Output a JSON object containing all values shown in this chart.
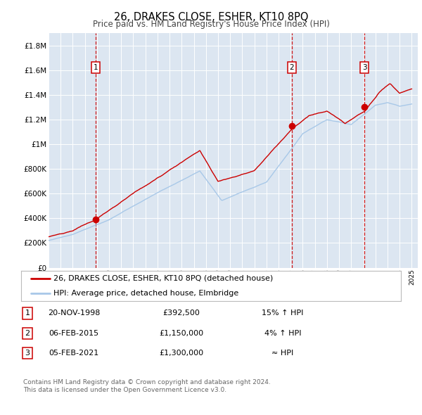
{
  "title": "26, DRAKES CLOSE, ESHER, KT10 8PQ",
  "subtitle": "Price paid vs. HM Land Registry's House Price Index (HPI)",
  "background_color": "#ffffff",
  "plot_bg_color": "#dce6f1",
  "hpi_line_color": "#a8c8e8",
  "price_line_color": "#cc0000",
  "sale_marker_color": "#cc0000",
  "vline_color": "#cc0000",
  "ylim": [
    0,
    1900000
  ],
  "yticks": [
    0,
    200000,
    400000,
    600000,
    800000,
    1000000,
    1200000,
    1400000,
    1600000,
    1800000
  ],
  "ytick_labels": [
    "£0",
    "£200K",
    "£400K",
    "£600K",
    "£800K",
    "£1M",
    "£1.2M",
    "£1.4M",
    "£1.6M",
    "£1.8M"
  ],
  "sale_dates": [
    1998.9,
    2015.1,
    2021.1
  ],
  "sale_prices": [
    392500,
    1150000,
    1300000
  ],
  "sale_labels": [
    "1",
    "2",
    "3"
  ],
  "legend_line1": "26, DRAKES CLOSE, ESHER, KT10 8PQ (detached house)",
  "legend_line2": "HPI: Average price, detached house, Elmbridge",
  "table_data": [
    [
      "1",
      "20-NOV-1998",
      "£392,500",
      "15% ↑ HPI"
    ],
    [
      "2",
      "06-FEB-2015",
      "£1,150,000",
      "4% ↑ HPI"
    ],
    [
      "3",
      "05-FEB-2021",
      "£1,300,000",
      "≈ HPI"
    ]
  ],
  "footnote1": "Contains HM Land Registry data © Crown copyright and database right 2024.",
  "footnote2": "This data is licensed under the Open Government Licence v3.0."
}
